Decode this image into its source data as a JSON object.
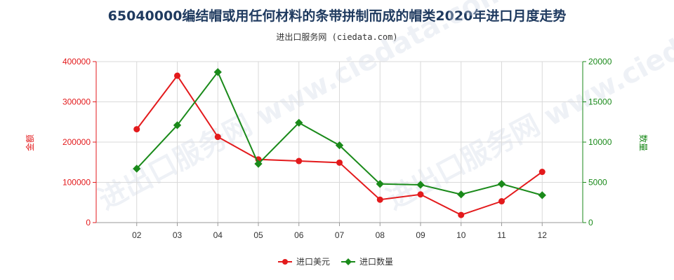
{
  "header": {
    "title": "65040000编结帽或用任何材料的条带拼制而成的帽类2020年进口月度走势",
    "subtitle": "进出口服务网 (ciedata.com)"
  },
  "watermark": "进出口服务网 www.ciedata.com",
  "colors": {
    "left_series": "#e31a1c",
    "right_series": "#1a8a1a",
    "grid": "#d9d9d9",
    "axis": "#999999"
  },
  "chart_data": {
    "type": "line",
    "categories": [
      "02",
      "03",
      "04",
      "05",
      "06",
      "07",
      "08",
      "09",
      "10",
      "11",
      "12"
    ],
    "series": [
      {
        "name": "进口美元",
        "axis": "left",
        "values": [
          232000,
          365000,
          213000,
          157000,
          153000,
          149000,
          57000,
          70000,
          19000,
          53000,
          126000
        ]
      },
      {
        "name": "进口数量",
        "axis": "right",
        "values": [
          6700,
          12100,
          18700,
          7300,
          12400,
          9600,
          4800,
          4700,
          3500,
          4800,
          3400
        ]
      }
    ],
    "ylabel_left": "金额",
    "ylabel_right": "数量",
    "ylim_left": [
      0,
      400000
    ],
    "ylim_right": [
      0,
      20000
    ],
    "yticks_left": [
      "0",
      "100000",
      "200000",
      "300000",
      "400000"
    ],
    "yticks_right": [
      "0",
      "5000",
      "10000",
      "15000",
      "20000"
    ],
    "grid": true,
    "legend_position": "bottom-center"
  }
}
